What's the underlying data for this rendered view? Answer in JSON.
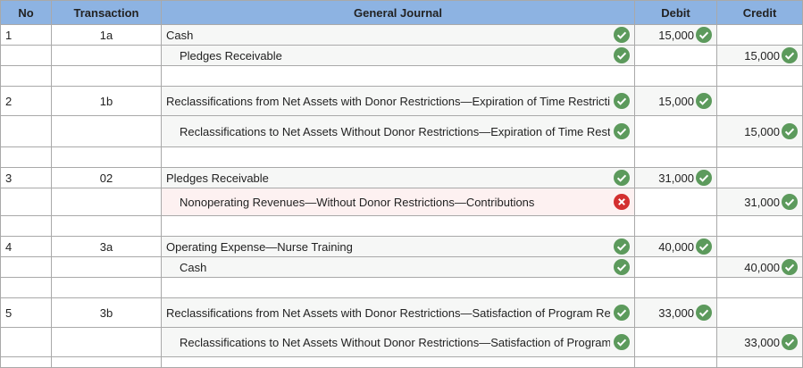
{
  "table": {
    "headers": [
      "No",
      "Transaction",
      "General Journal",
      "Debit",
      "Credit"
    ],
    "entries": [
      {
        "no": "1",
        "transaction": "1a",
        "lines": [
          {
            "account": "Cash",
            "status": "correct",
            "debit": "15,000"
          },
          {
            "account": "Pledges Receivable",
            "status": "correct",
            "credit": "15,000"
          }
        ]
      },
      {
        "no": "2",
        "transaction": "1b",
        "lines": [
          {
            "account": "Reclassifications from Net Assets with Donor Restrictions—Expiration of Time Restrictions",
            "status": "correct",
            "debit": "15,000"
          },
          {
            "account": "Reclassifications to Net Assets Without Donor Restrictions—Expiration of Time Restrictions",
            "status": "correct",
            "credit": "15,000"
          }
        ]
      },
      {
        "no": "3",
        "transaction": "02",
        "lines": [
          {
            "account": "Pledges Receivable",
            "status": "correct",
            "debit": "31,000"
          },
          {
            "account": "Nonoperating Revenues—Without Donor Restrictions—Contributions",
            "status": "incorrect",
            "credit": "31,000"
          }
        ]
      },
      {
        "no": "4",
        "transaction": "3a",
        "lines": [
          {
            "account": "Operating Expense—Nurse Training",
            "status": "correct",
            "debit": "40,000"
          },
          {
            "account": "Cash",
            "status": "correct",
            "credit": "40,000"
          }
        ]
      },
      {
        "no": "5",
        "transaction": "3b",
        "lines": [
          {
            "account": "Reclassifications from Net Assets with Donor Restrictions—Satisfaction of Program Restrictions",
            "status": "correct",
            "debit": "33,000"
          },
          {
            "account": "Reclassifications to Net Assets Without Donor Restrictions—Satisfaction of Program Restrictions",
            "status": "correct",
            "credit": "33,000"
          }
        ]
      }
    ]
  }
}
